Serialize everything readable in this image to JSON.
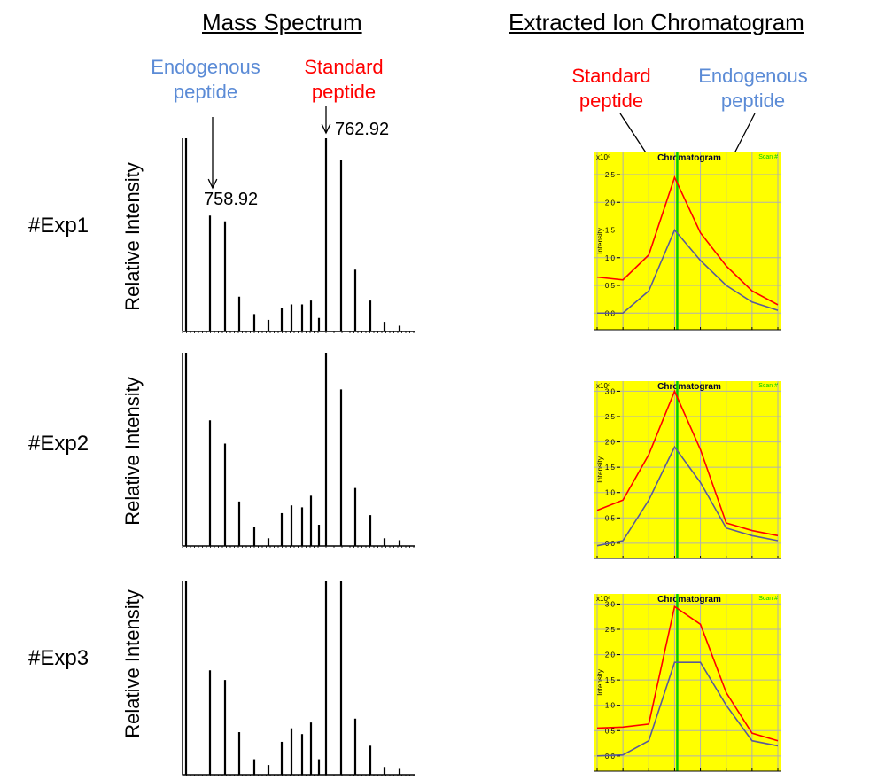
{
  "titles": {
    "mass_spectrum": "Mass Spectrum",
    "xic": "Extracted Ion Chromatogram"
  },
  "annotations": {
    "ms_endogenous": "Endogenous\npeptide",
    "ms_standard": "Standard\npeptide",
    "ms_endogenous_mz": "758.92",
    "ms_standard_mz": "762.92",
    "xic_standard": "Standard\npeptide",
    "xic_endogenous": "Endogenous\npeptide"
  },
  "colors": {
    "endogenous": "#5b8bd6",
    "standard": "#ff0000",
    "plot_bg": "#ffff00",
    "grid": "#b0b0b0",
    "scan_line": "#00cc00",
    "xic_endogenous_line": "#5a5a9a"
  },
  "rows": [
    {
      "label": "#Exp1",
      "ylabel": "Relative Intensity"
    },
    {
      "label": "#Exp2",
      "ylabel": "Relative Intensity"
    },
    {
      "label": "#Exp3",
      "ylabel": "Relative Intensity"
    }
  ],
  "chart_data": [
    {
      "type": "bar",
      "panel": "mass_spectrum",
      "experiment": "#Exp1",
      "ylabel": "Relative Intensity",
      "series": [
        {
          "name": "",
          "values": [
            1.0,
            0.6,
            0.57,
            0.18,
            0.09,
            0.06,
            0.12,
            0.14,
            0.14,
            0.16,
            0.07,
            1.0,
            0.89,
            0.32,
            0.16,
            0.05,
            0.03
          ]
        }
      ]
    },
    {
      "type": "bar",
      "panel": "mass_spectrum",
      "experiment": "#Exp2",
      "ylabel": "Relative Intensity",
      "series": [
        {
          "name": "",
          "values": [
            1.0,
            0.65,
            0.53,
            0.23,
            0.1,
            0.04,
            0.17,
            0.21,
            0.2,
            0.26,
            0.11,
            1.0,
            0.81,
            0.3,
            0.16,
            0.04,
            0.03
          ]
        }
      ]
    },
    {
      "type": "bar",
      "panel": "mass_spectrum",
      "experiment": "#Exp3",
      "ylabel": "Relative Intensity",
      "series": [
        {
          "name": "",
          "values": [
            1.0,
            0.54,
            0.49,
            0.22,
            0.08,
            0.05,
            0.17,
            0.24,
            0.21,
            0.27,
            0.08,
            1.0,
            1.0,
            0.29,
            0.15,
            0.04,
            0.03
          ]
        }
      ]
    },
    {
      "type": "line",
      "panel": "xic",
      "experiment": "#Exp1",
      "title": "Chromatogram",
      "scan_label": "Scan #",
      "y_exponent": "x10⁶",
      "ylabel": "Intensity",
      "yticks": [
        "0.0",
        "0.5",
        "1.0",
        "1.5",
        "2.0",
        "2.5"
      ],
      "ylim": [
        -0.3,
        2.9
      ],
      "series": [
        {
          "name": "",
          "role": "standard",
          "values": [
            0.65,
            0.6,
            1.05,
            2.45,
            1.45,
            0.85,
            0.4,
            0.15
          ]
        },
        {
          "name": "",
          "role": "endogenous",
          "values": [
            0.0,
            0.0,
            0.4,
            1.5,
            0.95,
            0.5,
            0.2,
            0.05
          ]
        }
      ],
      "marker_index": 3
    },
    {
      "type": "line",
      "panel": "xic",
      "experiment": "#Exp2",
      "title": "Chromatogram",
      "scan_label": "Scan #",
      "y_exponent": "x10⁶",
      "ylabel": "Intensity",
      "yticks": [
        "0.0",
        "0.5",
        "1.0",
        "1.5",
        "2.0",
        "2.5",
        "3.0"
      ],
      "ylim": [
        -0.3,
        3.2
      ],
      "series": [
        {
          "name": "",
          "role": "standard",
          "values": [
            0.65,
            0.85,
            1.75,
            3.0,
            1.85,
            0.4,
            0.25,
            0.15
          ]
        },
        {
          "name": "",
          "role": "endogenous",
          "values": [
            -0.05,
            0.05,
            0.85,
            1.9,
            1.2,
            0.3,
            0.15,
            0.05
          ]
        }
      ],
      "marker_index": 3
    },
    {
      "type": "line",
      "panel": "xic",
      "experiment": "#Exp3",
      "title": "Chromatogram",
      "scan_label": "Scan #",
      "y_exponent": "x10⁶",
      "ylabel": "Intensity",
      "yticks": [
        "0.0",
        "0.5",
        "1.0",
        "1.5",
        "2.0",
        "2.5",
        "3.0"
      ],
      "ylim": [
        -0.3,
        3.2
      ],
      "series": [
        {
          "name": "",
          "role": "standard",
          "values": [
            0.55,
            0.57,
            0.63,
            2.95,
            2.6,
            1.25,
            0.45,
            0.3
          ]
        },
        {
          "name": "",
          "role": "endogenous",
          "values": [
            0.0,
            0.02,
            0.3,
            1.85,
            1.85,
            1.0,
            0.3,
            0.2
          ]
        }
      ],
      "marker_index": 3
    }
  ]
}
